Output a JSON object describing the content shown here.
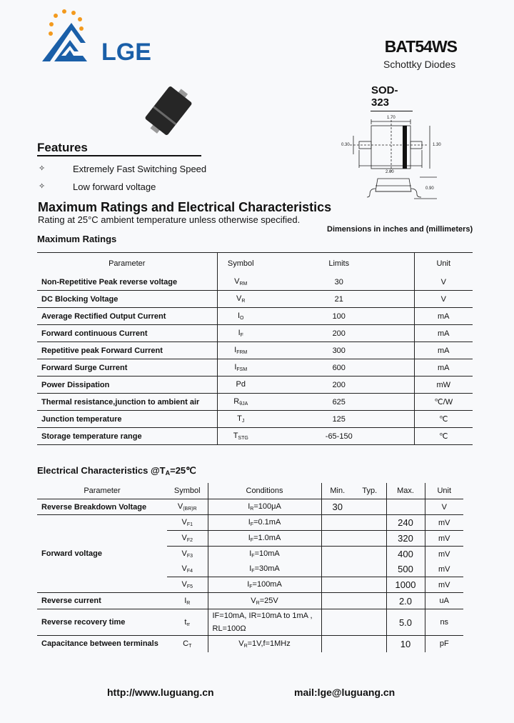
{
  "header": {
    "logo_text": "LGE",
    "part_number": "BAT54WS",
    "subtitle": "Schottky Diodes",
    "package": "SOD-323",
    "colors": {
      "logo_blue": "#1a5fa8",
      "logo_orange": "#f39a1e"
    }
  },
  "drawing": {
    "dims": {
      "length_body": "1.70",
      "lead": "0.30",
      "width": "1.30",
      "length_total": "2.60",
      "height": "0.90"
    },
    "note": "Dimensions in inches and (millimeters)"
  },
  "features": {
    "title": "Features",
    "bullet_icon": "diamond-star-icon",
    "items": [
      "Extremely Fast Switching Speed",
      "Low forward voltage"
    ]
  },
  "ratings": {
    "title": "Maximum Ratings and Electrical Characteristics",
    "subtitle": "Rating at 25°C ambient temperature unless otherwise specified.",
    "label": "Maximum Ratings",
    "headers": [
      "Parameter",
      "Symbol",
      "Limits",
      "Unit"
    ],
    "rows": [
      {
        "param": "Non-Repetitive Peak reverse voltage",
        "sym": "V",
        "sub": "RM",
        "limit": "30",
        "unit": "V"
      },
      {
        "param": "DC Blocking Voltage",
        "sym": "V",
        "sub": "R",
        "limit": "21",
        "unit": "V"
      },
      {
        "param": "Average Rectified Output Current",
        "sym": "I",
        "sub": "O",
        "limit": "100",
        "unit": "mA"
      },
      {
        "param": "Forward continuous Current",
        "sym": "I",
        "sub": "F",
        "limit": "200",
        "unit": "mA"
      },
      {
        "param": "Repetitive peak Forward Current",
        "sym": "I",
        "sub": "FRM",
        "limit": "300",
        "unit": "mA"
      },
      {
        "param": "Forward Surge Current",
        "sym": "I",
        "sub": "FSM",
        "limit": "600",
        "unit": "mA"
      },
      {
        "param": "Power Dissipation",
        "sym": "Pd",
        "sub": "",
        "limit": "200",
        "unit": "mW"
      },
      {
        "param": "Thermal resistance,junction to ambient air",
        "sym": "R",
        "sub": "θJA",
        "limit": "625",
        "unit": "℃/W"
      },
      {
        "param": "Junction temperature",
        "sym": "T",
        "sub": "J",
        "limit": "125",
        "unit": "℃"
      },
      {
        "param": "Storage temperature range",
        "sym": "T",
        "sub": "STG",
        "limit": "-65-150",
        "unit": "℃"
      }
    ]
  },
  "electrical": {
    "title_pre": "Electrical Characteristics @T",
    "title_sub": "A",
    "title_post": "=25℃",
    "headers": [
      "Parameter",
      "Symbol",
      "Conditions",
      "Min.",
      "Typ.",
      "Max.",
      "Unit"
    ],
    "rbv": {
      "param": "Reverse Breakdown Voltage",
      "sym": "V",
      "sub": "(BR)R",
      "cond": "I",
      "cond_sub": "R",
      "cond_val": "=100μA",
      "min": "30",
      "unit": "V"
    },
    "forward_param": "Forward voltage",
    "forward": [
      {
        "sym": "V",
        "sub": "F1",
        "cond": "I",
        "cond_sub": "F",
        "cond_val": "=0.1mA",
        "max": "240",
        "unit": "mV"
      },
      {
        "sym": "V",
        "sub": "F2",
        "cond": "I",
        "cond_sub": "F",
        "cond_val": "=1.0mA",
        "max": "320",
        "unit": "mV"
      },
      {
        "sym": "V",
        "sub": "F3",
        "cond": "I",
        "cond_sub": "F",
        "cond_val": "=10mA",
        "max": "400",
        "unit": "mV"
      },
      {
        "sym": "V",
        "sub": "F4",
        "cond": "I",
        "cond_sub": "F",
        "cond_val": "=30mA",
        "max": "500",
        "unit": "mV"
      },
      {
        "sym": "V",
        "sub": "F5",
        "cond": "I",
        "cond_sub": "F",
        "cond_val": "=100mA",
        "max": "1000",
        "unit": "mV"
      }
    ],
    "ir": {
      "param": "Reverse current",
      "sym": "I",
      "sub": "R",
      "cond": "V",
      "cond_sub": "R",
      "cond_val": "=25V",
      "max": "2.0",
      "unit": "uA"
    },
    "trr": {
      "param": "Reverse recovery time",
      "sym": "t",
      "sub": "rr",
      "cond_line1": "IF=10mA, IR=10mA to 1mA ,",
      "cond_line2": "RL=100Ω",
      "max": "5.0",
      "unit": "ns"
    },
    "ct": {
      "param": "Capacitance between terminals",
      "sym": "C",
      "sub": "T",
      "cond": "V",
      "cond_sub": "R",
      "cond_val": "=1V,f=1MHz",
      "max": "10",
      "unit": "pF"
    }
  },
  "footer": {
    "url": "http://www.luguang.cn",
    "mail": "mail:lge@luguang.cn"
  }
}
